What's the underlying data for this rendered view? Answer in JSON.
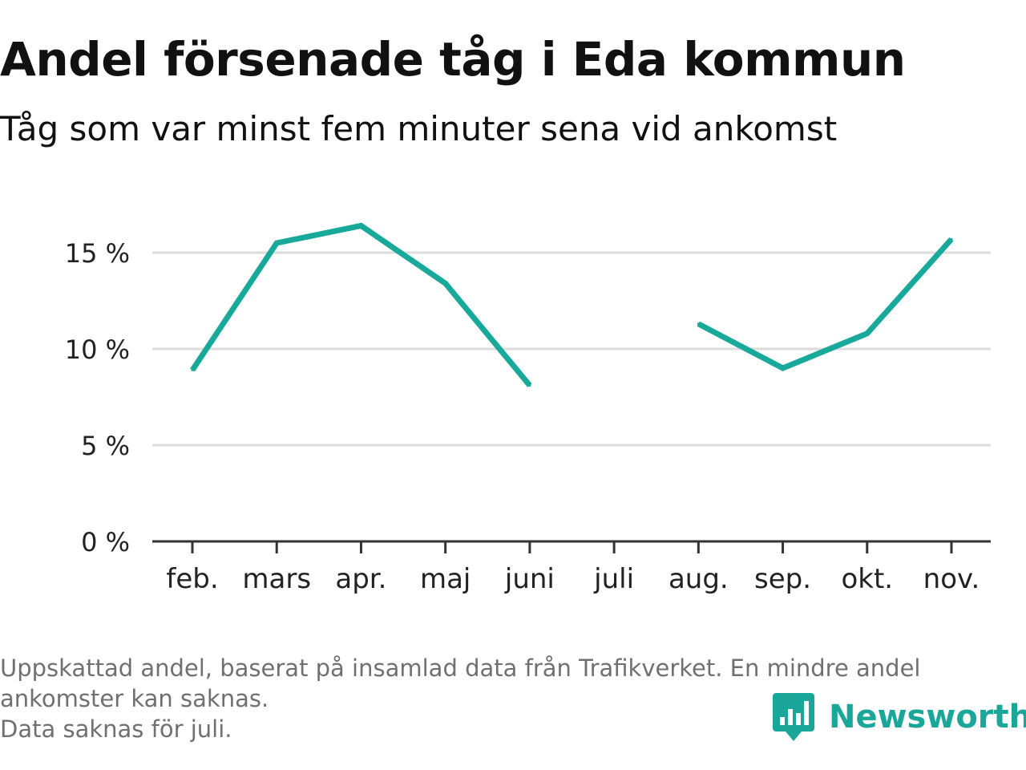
{
  "header": {
    "title": "Andel försenade tåg i Eda kommun",
    "subtitle": "Tåg som var minst fem minuter sena vid ankomst"
  },
  "chart_data": {
    "type": "line",
    "title": "Andel försenade tåg i Eda kommun",
    "subtitle": "Tåg som var minst fem minuter sena vid ankomst",
    "categories": [
      "feb.",
      "mars",
      "apr.",
      "maj",
      "juni",
      "juli",
      "aug.",
      "sep.",
      "okt.",
      "nov."
    ],
    "series": [
      {
        "values": [
          8.9,
          15.5,
          16.4,
          13.4,
          8.1,
          null,
          11.3,
          9.0,
          10.8,
          15.7
        ]
      }
    ],
    "y_ticks": [
      0,
      5,
      10,
      15
    ],
    "y_tick_labels": [
      "0 %",
      "5 %",
      "10 %",
      "15 %"
    ],
    "ylim": [
      0,
      17.5
    ],
    "unit": "%",
    "grid": true,
    "line_color": "#18a99b",
    "grid_color": "#dddddd",
    "axis_color": "#333333"
  },
  "footnotes": [
    "Uppskattad andel, baserat på insamlad data från Trafikverket. En mindre andel",
    "ankomster kan saknas.",
    "Data saknas för juli."
  ],
  "brand": {
    "name": "Newsworthy",
    "icon": "newsworthy-logo-icon",
    "color": "#1aa79a"
  }
}
